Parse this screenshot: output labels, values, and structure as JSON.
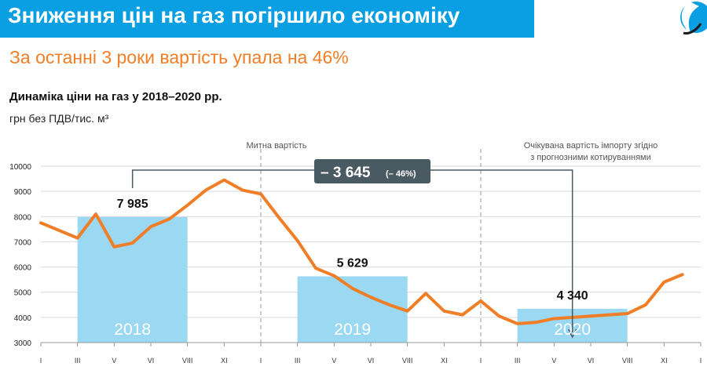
{
  "header": {
    "title": "Зниження цін на газ погіршило економіку",
    "subtitle": "За останні 3 роки вартість упала на 46%",
    "accent_color": "#0A9FE3",
    "subtitle_color": "#F07E26"
  },
  "chart_data": {
    "type": "bar+line",
    "title": "Динаміка ціни на газ у 2018–2020 рр.",
    "units": "грн без ПДВ/тис. м³",
    "ylim": [
      3000,
      10000
    ],
    "yticks": [
      "3000",
      "4000",
      "5000",
      "6000",
      "7000",
      "8000",
      "9000",
      "10000"
    ],
    "month_labels": [
      "I",
      "III",
      "V",
      "VI",
      "VIII",
      "XI",
      "I",
      "III",
      "V",
      "VI",
      "VIII",
      "XI",
      "I",
      "III",
      "V",
      "VI",
      "VIII",
      "XI",
      "I"
    ],
    "bars": [
      {
        "category": "2018",
        "value": 7985,
        "value_label": "7 985",
        "year_label": "2018"
      },
      {
        "category": "2019",
        "value": 5629,
        "value_label": "5 629",
        "year_label": "2019"
      },
      {
        "category": "2020",
        "value": 4340,
        "value_label": "4 340",
        "year_label": "2020"
      }
    ],
    "line": {
      "color": "#F07E26",
      "x": [
        "2018-01",
        "2018-03",
        "2018-04",
        "2018-05",
        "2018-06",
        "2018-07",
        "2018-08",
        "2018-09",
        "2018-10",
        "2018-11",
        "2018-12",
        "2019-01",
        "2019-02",
        "2019-03",
        "2019-04",
        "2019-05",
        "2019-06",
        "2019-07",
        "2019-08",
        "2019-09",
        "2019-10",
        "2019-11",
        "2019-12",
        "2020-01",
        "2020-02",
        "2020-03",
        "2020-04",
        "2020-05",
        "2020-06",
        "2020-07",
        "2020-08",
        "2020-09",
        "2020-10",
        "2020-11",
        "2020-12"
      ],
      "values": [
        7750,
        7150,
        8100,
        6800,
        6950,
        7600,
        7900,
        8450,
        9050,
        9450,
        9050,
        8900,
        7950,
        7050,
        5950,
        5650,
        5150,
        4800,
        4500,
        4250,
        4950,
        4250,
        4100,
        4650,
        4050,
        3750,
        3800,
        3950,
        4000,
        4050,
        4100,
        4150,
        4500,
        5400,
        5700
      ]
    },
    "annotations": {
      "customs_label": "Митна вартість",
      "forecast_label_line1": "Очікувана вартість імпорту згідно",
      "forecast_label_line2": "з прогнозними котируваннями",
      "delta_label": "– 3 645",
      "delta_pct": "(– 46%)"
    },
    "bar_color": "#9BD8F2",
    "delta_box_color": "#4A5A62"
  }
}
